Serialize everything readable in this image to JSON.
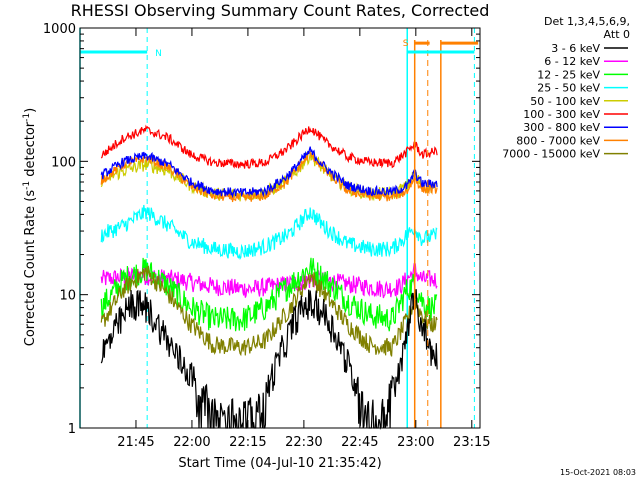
{
  "chart_data": {
    "type": "line",
    "title": "RHESSI Observing Summary Count Rates, Corrected",
    "xlabel": "Start Time (04-Jul-10 21:35:42)",
    "ylabel": "Corrected Count Rate (s⁻¹ detector⁻¹)",
    "ylabel_main": "Corrected Count Rate (s",
    "ylabel_sup1": "-1",
    "ylabel_mid": " detector",
    "ylabel_sup2": "-1",
    "ylabel_end": ")",
    "y_scale": "log",
    "ylim": [
      1,
      1000
    ],
    "xlim_minutes": [
      -5.7,
      101.5
    ],
    "x_ticks": [
      {
        "label": "21:45",
        "minute": 9.3
      },
      {
        "label": "22:00",
        "minute": 24.3
      },
      {
        "label": "22:15",
        "minute": 39.3
      },
      {
        "label": "22:30",
        "minute": 54.3
      },
      {
        "label": "22:45",
        "minute": 69.3
      },
      {
        "label": "23:00",
        "minute": 84.3
      },
      {
        "label": "23:15",
        "minute": 99.3
      }
    ],
    "y_ticks": [
      {
        "label": "1000",
        "value": 1000
      },
      {
        "label": "100",
        "value": 100
      },
      {
        "label": "10",
        "value": 10
      },
      {
        "label": "1",
        "value": 1
      }
    ],
    "legend_header": [
      "Det 1,3,4,5,6,9,",
      "Att 0"
    ],
    "legend_position": "right",
    "series": [
      {
        "name": "3 - 6 keV",
        "color": "#000000",
        "noise": 0.1,
        "x": [
          0,
          4,
          8,
          12,
          16,
          20,
          24,
          27,
          30,
          33,
          36,
          40,
          44,
          48,
          52,
          55,
          58,
          60,
          63,
          66,
          70,
          72,
          74,
          76,
          78,
          80,
          82,
          84,
          86,
          88,
          89,
          90
        ],
        "y": [
          3.5,
          5.5,
          8.5,
          8.0,
          5.5,
          3.5,
          2.5,
          1.8,
          1.3,
          1.0,
          0.8,
          1.0,
          1.8,
          3.5,
          6.5,
          8.5,
          8.0,
          7.0,
          5.0,
          3.0,
          1.5,
          1.0,
          1.0,
          1.2,
          2.0,
          2.5,
          6.0,
          9.0,
          6.0,
          4.0,
          3.5,
          3.5
        ]
      },
      {
        "name": "6 - 12 keV",
        "color": "#ff00ff",
        "noise": 0.07,
        "x": [
          0,
          10,
          20,
          30,
          40,
          50,
          58,
          66,
          76,
          80,
          84,
          86,
          90
        ],
        "y": [
          13,
          14,
          13,
          11.5,
          11,
          12,
          13,
          12,
          11,
          11.5,
          15,
          13,
          13
        ]
      },
      {
        "name": "12 - 25 keV",
        "color": "#00ff00",
        "noise": 0.1,
        "x": [
          0,
          6,
          12,
          18,
          24,
          30,
          38,
          44,
          50,
          56,
          60,
          66,
          72,
          78,
          82,
          84,
          86,
          88,
          90
        ],
        "y": [
          8,
          13,
          15.5,
          11.5,
          8.0,
          6.5,
          6.5,
          8.0,
          11.5,
          16,
          13,
          9.0,
          7.0,
          6.5,
          11,
          12,
          9,
          8,
          8
        ]
      },
      {
        "name": "25 - 50 keV",
        "color": "#00ffff",
        "noise": 0.06,
        "x": [
          0,
          6,
          12,
          18,
          24,
          30,
          38,
          44,
          50,
          56,
          60,
          66,
          72,
          78,
          82,
          84,
          86,
          88,
          90
        ],
        "y": [
          28,
          33,
          42,
          33,
          25,
          22,
          21,
          23,
          28,
          42,
          32,
          24,
          22,
          22,
          28,
          32,
          26,
          27,
          28
        ]
      },
      {
        "name": "50 - 100 keV",
        "color": "#cccc00",
        "noise": 0.05,
        "x": [
          0,
          6,
          12,
          18,
          24,
          30,
          38,
          44,
          50,
          56,
          60,
          66,
          72,
          78,
          82,
          84,
          86,
          88,
          90
        ],
        "y": [
          72,
          85,
          95,
          85,
          66,
          57,
          56,
          58,
          72,
          112,
          85,
          63,
          57,
          57,
          65,
          80,
          65,
          64,
          64
        ]
      },
      {
        "name": "100 - 300 keV",
        "color": "#ff0000",
        "noise": 0.035,
        "x": [
          0,
          6,
          12,
          18,
          24,
          30,
          38,
          44,
          50,
          56,
          60,
          66,
          72,
          78,
          82,
          84,
          86,
          88,
          90
        ],
        "y": [
          110,
          150,
          172,
          150,
          112,
          98,
          95,
          98,
          125,
          180,
          140,
          108,
          98,
          97,
          118,
          135,
          112,
          115,
          120
        ]
      },
      {
        "name": "300 - 800 keV",
        "color": "#0000ff",
        "noise": 0.035,
        "x": [
          0,
          6,
          12,
          18,
          24,
          30,
          38,
          44,
          50,
          56,
          60,
          66,
          72,
          78,
          82,
          84,
          86,
          88,
          90
        ],
        "y": [
          78,
          100,
          110,
          95,
          70,
          60,
          58,
          60,
          78,
          120,
          90,
          66,
          60,
          59,
          65,
          82,
          68,
          68,
          68
        ]
      },
      {
        "name": "800 - 7000 keV",
        "color": "#ff8000",
        "noise": 0.035,
        "x": [
          0,
          6,
          12,
          18,
          24,
          30,
          38,
          44,
          50,
          56,
          60,
          66,
          72,
          78,
          82,
          84,
          86,
          88,
          90
        ],
        "y": [
          72,
          95,
          106,
          90,
          65,
          55,
          53,
          55,
          72,
          115,
          85,
          60,
          55,
          54,
          60,
          76,
          62,
          62,
          62
        ]
      },
      {
        "name": "7000 - 15000 keV",
        "color": "#808000",
        "noise": 0.07,
        "x": [
          0,
          6,
          12,
          18,
          24,
          30,
          38,
          44,
          50,
          56,
          60,
          66,
          72,
          78,
          82,
          84,
          86,
          88,
          90
        ],
        "y": [
          6,
          11,
          15,
          10,
          6.0,
          4.2,
          4.0,
          4.5,
          7.5,
          14,
          10,
          6.0,
          4.2,
          4.0,
          6.5,
          9.0,
          7.0,
          6.0,
          6.0
        ]
      }
    ],
    "annotations": {
      "night_markers": [
        {
          "label": "N",
          "start": -5.7,
          "end": 12.3,
          "level": 660
        },
        {
          "label": "",
          "start": 82,
          "end": 100,
          "level": 660
        }
      ],
      "saa_markers": [
        {
          "label": "S",
          "start": 84,
          "end": 88,
          "level": 770
        },
        {
          "label": "",
          "start": 91,
          "end": 101,
          "level": 770
        }
      ],
      "cyan_dashed_x": [
        12.3,
        100
      ],
      "cyan_solid_x": [
        -5.7,
        82
      ],
      "orange_solid_x": [
        84,
        91
      ],
      "orange_dashed_x": [
        87.5
      ]
    },
    "timestamp": "15-Oct-2021 08:03"
  }
}
